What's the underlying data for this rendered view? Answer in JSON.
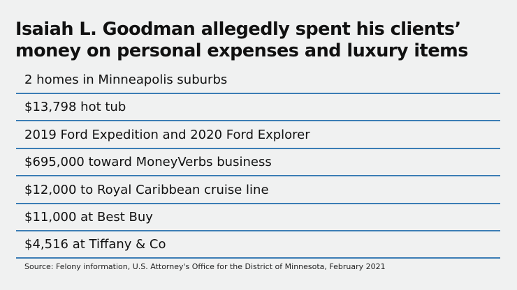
{
  "title": "Isaiah L. Goodman allegedly spent his clients’ money on personal expenses and luxury items",
  "items": [
    "2 homes in Minneapolis suburbs",
    "$13,798 hot tub",
    "2019 Ford Expedition and 2020 Ford Explorer",
    "$695,000 toward MoneyVerbs business",
    "$12,000 to Royal Caribbean cruise line",
    "$11,000 at Best Buy",
    "$4,516 at Tiffany & Co"
  ],
  "source": "Source: Felony information, U.S. Attorney's Office for the District of Minnesota, February 2021",
  "colors": {
    "rule": "#3b7db5",
    "background": "#f0f1f1"
  }
}
